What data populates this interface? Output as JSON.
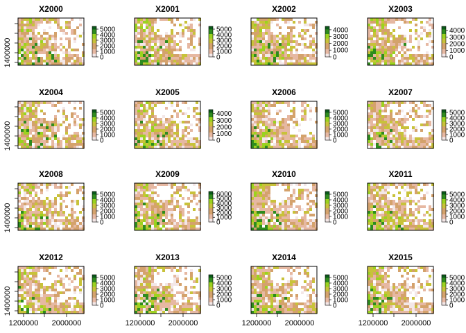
{
  "chart_data": {
    "type": "heatmap",
    "layout": "4x4 small multiples",
    "panels": [
      {
        "title": "X2000",
        "legend_ticks": [
          "5000",
          "4000",
          "3000",
          "2000",
          "1000",
          "0"
        ],
        "legend_max": 5500
      },
      {
        "title": "X2001",
        "legend_ticks": [
          "5000",
          "4000",
          "3000",
          "2000",
          "1000",
          "0"
        ],
        "legend_max": 5500
      },
      {
        "title": "X2002",
        "legend_ticks": [
          "4000",
          "3000",
          "2000",
          "1000",
          "0"
        ],
        "legend_max": 4500
      },
      {
        "title": "X2003",
        "legend_ticks": [
          "4000",
          "3000",
          "2000",
          "1000",
          "0"
        ],
        "legend_max": 4600
      },
      {
        "title": "X2004",
        "legend_ticks": [
          "5000",
          "4000",
          "3000",
          "2000",
          "1000",
          "0"
        ],
        "legend_max": 5500
      },
      {
        "title": "X2005",
        "legend_ticks": [
          "4000",
          "3000",
          "2000",
          "1000",
          "0"
        ],
        "legend_max": 4600
      },
      {
        "title": "X2006",
        "legend_ticks": [
          "5000",
          "4000",
          "3000",
          "2000",
          "1000",
          "0"
        ],
        "legend_max": 5500
      },
      {
        "title": "X2007",
        "legend_ticks": [
          "5000",
          "4000",
          "3000",
          "2000",
          "1000",
          "0"
        ],
        "legend_max": 5500
      },
      {
        "title": "X2008",
        "legend_ticks": [
          "5000",
          "4000",
          "3000",
          "2000",
          "1000",
          "0"
        ],
        "legend_max": 5500
      },
      {
        "title": "X2009",
        "legend_ticks": [
          "6000",
          "5000",
          "4000",
          "3000",
          "2000",
          "1000",
          "0"
        ],
        "legend_max": 6500
      },
      {
        "title": "X2010",
        "legend_ticks": [
          "5000",
          "4000",
          "3000",
          "2000",
          "1000",
          "0"
        ],
        "legend_max": 5500
      },
      {
        "title": "X2011",
        "legend_ticks": [
          "5000",
          "4000",
          "3000",
          "2000",
          "1000",
          "0"
        ],
        "legend_max": 5500
      },
      {
        "title": "X2012",
        "legend_ticks": [
          "5000",
          "4000",
          "3000",
          "2000",
          "1000",
          "0"
        ],
        "legend_max": 5500
      },
      {
        "title": "X2013",
        "legend_ticks": [
          "5000",
          "4000",
          "3000",
          "2000",
          "1000",
          "0"
        ],
        "legend_max": 5500
      },
      {
        "title": "X2014",
        "legend_ticks": [
          "5000",
          "4000",
          "3000",
          "2000",
          "1000",
          "0"
        ],
        "legend_max": 5500
      },
      {
        "title": "X2015",
        "legend_ticks": [
          "5000",
          "4000",
          "3000",
          "2000",
          "1000",
          "0"
        ],
        "legend_max": 5500
      }
    ],
    "y_tick_label": "1400000",
    "x_tick_labels": [
      "1200000",
      "2000000"
    ],
    "colorscale": [
      "#f3e7e7",
      "#e6b8a2",
      "#d4a26c",
      "#c8c23a",
      "#9bd31f",
      "#2e8b1e",
      "#0b5a1a"
    ],
    "grid": false
  }
}
